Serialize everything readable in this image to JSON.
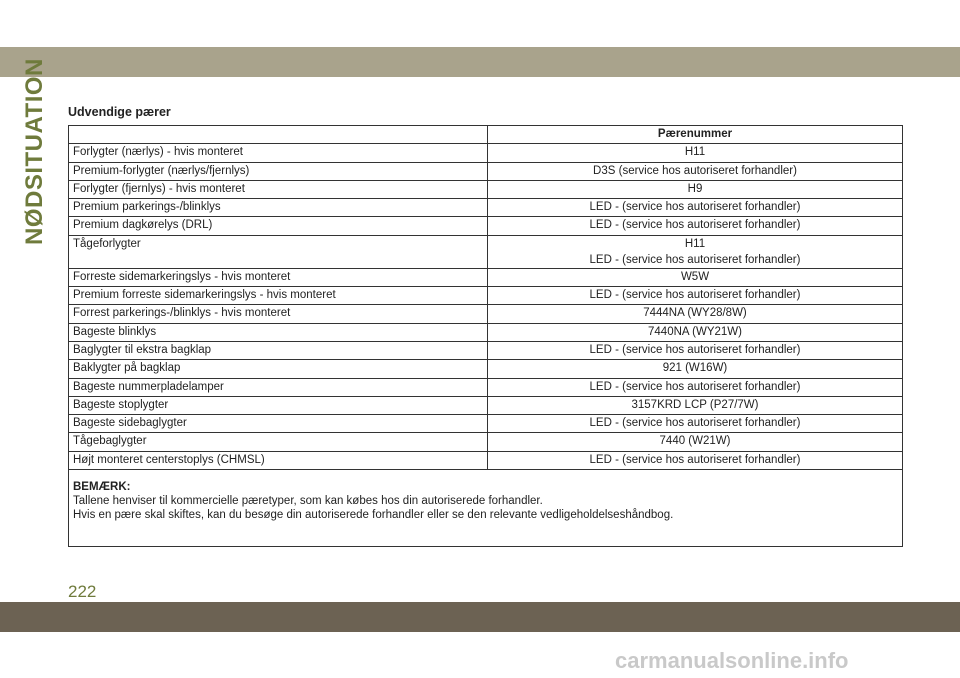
{
  "side_label": "NØDSITUATION",
  "title": "Udvendige pærer",
  "table": {
    "header": [
      "",
      "Pærenummer"
    ],
    "rows": [
      [
        "Forlygter (nærlys) - hvis monteret",
        "H11"
      ],
      [
        "Premium-forlygter (nærlys/fjernlys)",
        "D3S (service hos autoriseret forhandler)"
      ],
      [
        "Forlygter (fjernlys) - hvis monteret",
        "H9"
      ],
      [
        "Premium parkerings-/blinklys",
        "LED - (service hos autoriseret forhandler)"
      ],
      [
        "Premium dagkørelys (DRL)",
        "LED - (service hos autoriseret forhandler)"
      ],
      [
        "Tågeforlygter",
        [
          "H11",
          "LED - (service hos autoriseret forhandler)"
        ]
      ],
      [
        "Forreste sidemarkeringslys - hvis monteret",
        "W5W"
      ],
      [
        "Premium forreste sidemarkeringslys - hvis monteret",
        "LED - (service hos autoriseret forhandler)"
      ],
      [
        "Forrest parkerings-/blinklys - hvis monteret",
        "7444NA (WY28/8W)"
      ],
      [
        "Bageste blinklys",
        "7440NA (WY21W)"
      ],
      [
        "Baglygter til ekstra bagklap",
        "LED - (service hos autoriseret forhandler)"
      ],
      [
        "Baklygter på bagklap",
        "921 (W16W)"
      ],
      [
        "Bageste nummerpladelamper",
        "LED - (service hos autoriseret forhandler)"
      ],
      [
        "Bageste stoplygter",
        "3157KRD LCP (P27/7W)"
      ],
      [
        "Bageste sidebaglygter",
        "LED - (service hos autoriseret forhandler)"
      ],
      [
        "Tågebaglygter",
        "7440 (W21W)"
      ],
      [
        "Højt monteret centerstoplys (CHMSL)",
        "LED - (service hos autoriseret forhandler)"
      ]
    ],
    "note": {
      "heading": "BEMÆRK:",
      "lines": [
        "Tallene henviser til kommercielle pæretyper, som kan købes hos din autoriserede forhandler.",
        "Hvis en pære skal skiftes, kan du besøge din autoriserede forhandler eller se den relevante vedligeholdelseshåndbog."
      ]
    }
  },
  "page_number": "222",
  "watermark": "carmanualsonline.info"
}
